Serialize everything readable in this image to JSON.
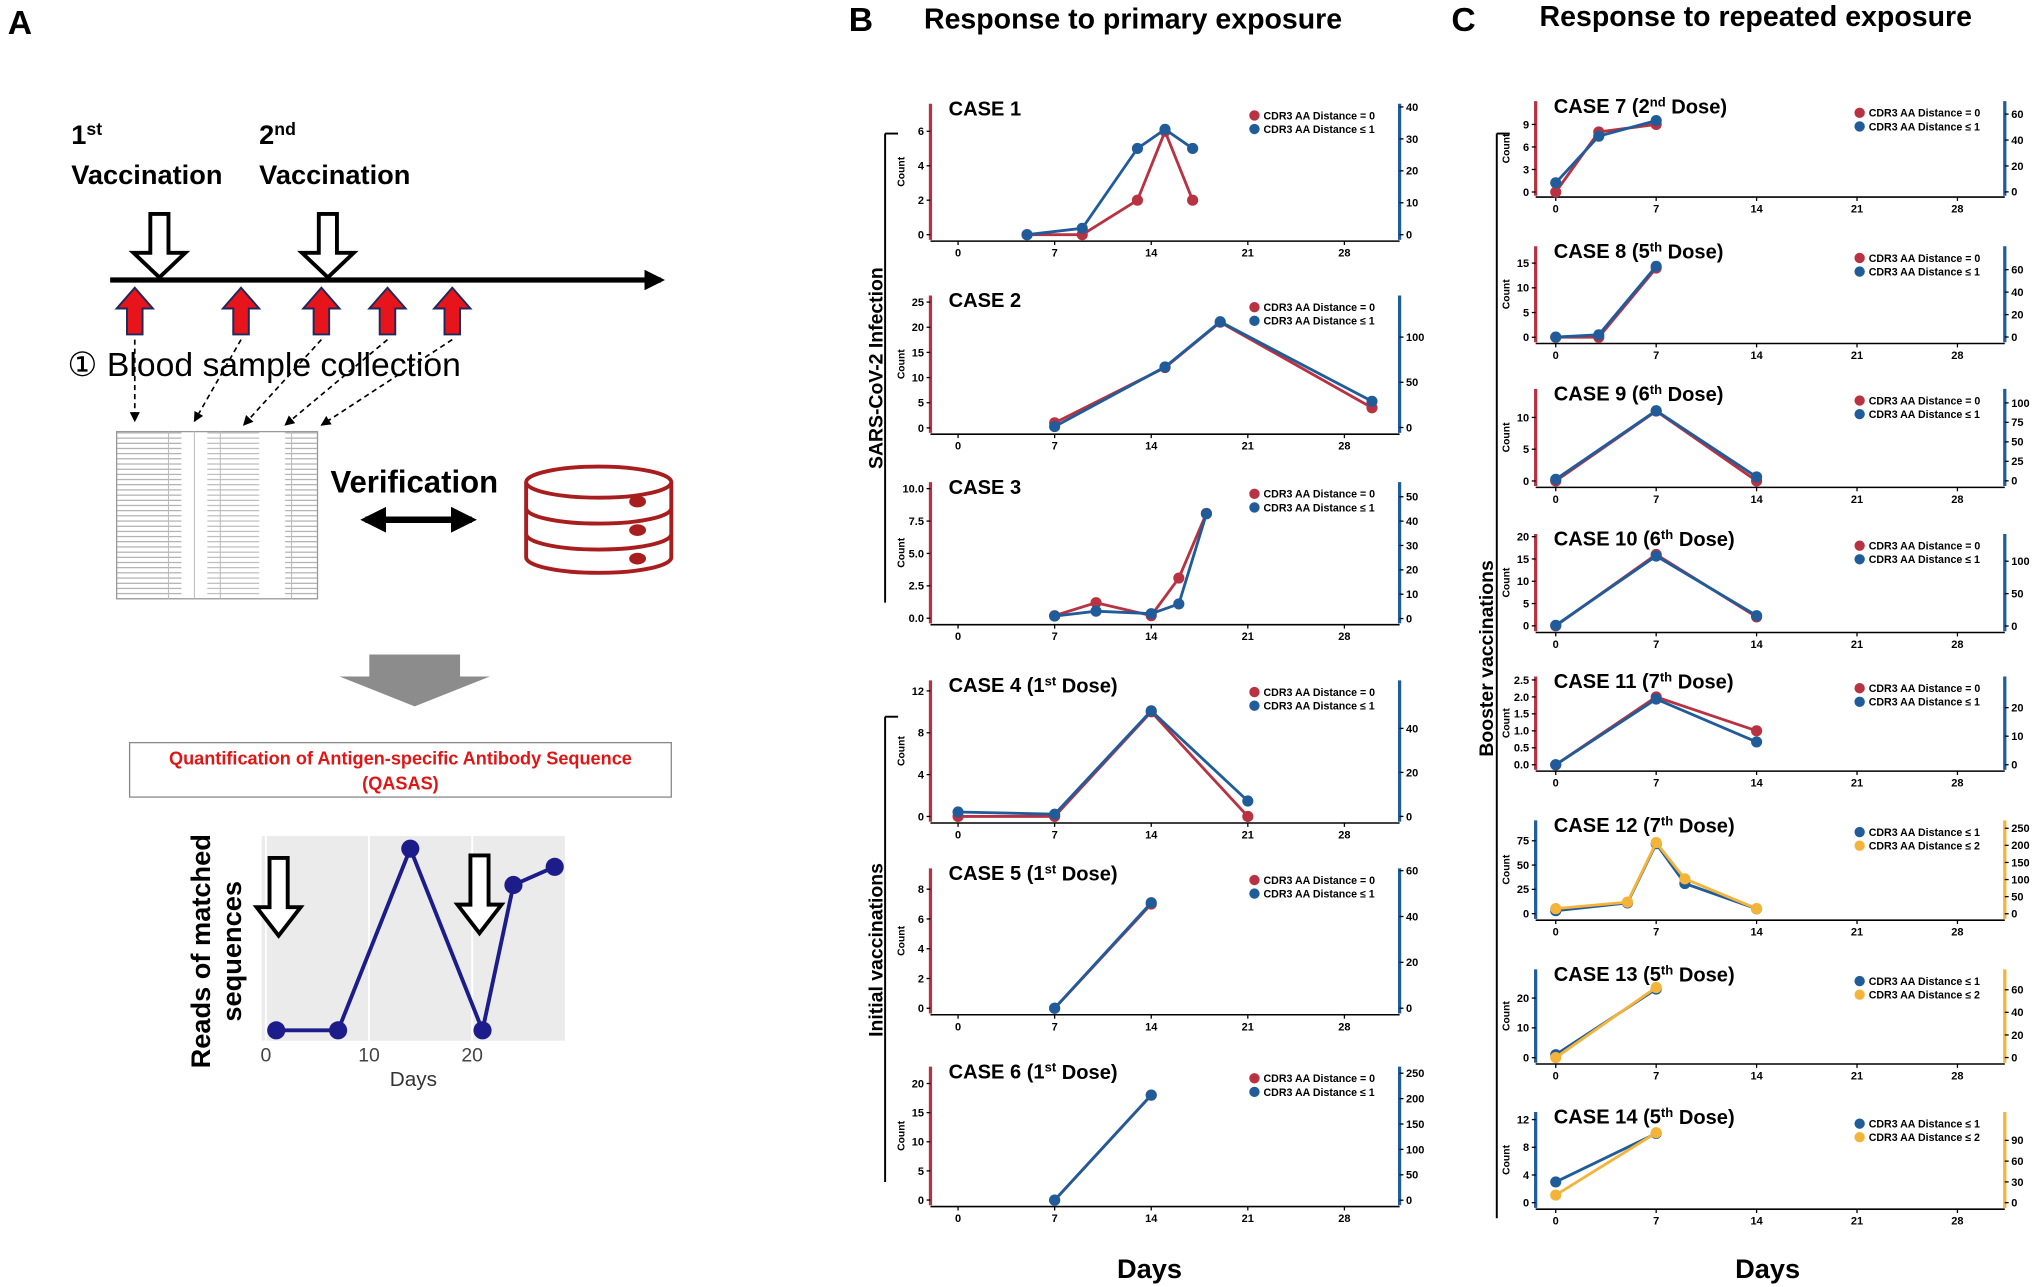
{
  "panel_a": {
    "label": "A",
    "doses": [
      {
        "ordinal": "1st",
        "text": "Vaccination"
      },
      {
        "ordinal": "2nd",
        "text": "Vaccination"
      }
    ],
    "sampling": "① Blood sample collection",
    "verification": "Verification",
    "method": [
      "Quantification of Antigen-specific Antibody Sequence",
      "(QASAS)"
    ]
  },
  "panel_b": {
    "label": "B",
    "title": "Response to primary exposure",
    "groups": [
      "SARS-CoV-2 Infection",
      "Initial vaccinations"
    ],
    "xlabel": "Days"
  },
  "panel_c": {
    "label": "C",
    "title": "Response to repeated exposure",
    "groups": [
      "Booster vaccinations"
    ],
    "xlabel": "Days"
  },
  "chart_data": [
    {
      "type": "line",
      "title": "CASE 1",
      "ylabel": "Count",
      "x": [
        5,
        9,
        13,
        15,
        17
      ],
      "xlim": [
        -2,
        32
      ],
      "xticks": [
        0,
        7,
        14,
        21,
        28
      ],
      "ylim": [
        -0.3,
        7.6
      ],
      "yticks": [
        0,
        2,
        4,
        6
      ],
      "y2lim": [
        -1.6,
        41
      ],
      "y2ticks": [
        0,
        10,
        20,
        30,
        40
      ],
      "series": [
        {
          "name": "CDR3 AA Distance = 0",
          "color": "#b83242",
          "values": [
            0,
            0,
            2,
            6,
            2
          ]
        },
        {
          "name": "CDR3 AA Distance ≤ 1",
          "color": "#1f5c99",
          "values": [
            0,
            2,
            27,
            33,
            27
          ],
          "axis": "y2"
        }
      ]
    },
    {
      "type": "line",
      "title": "CASE 2",
      "ylabel": "Count",
      "x": [
        7,
        15,
        19,
        30
      ],
      "xlim": [
        -2,
        32
      ],
      "xticks": [
        0,
        7,
        14,
        21,
        28
      ],
      "ylim": [
        -1,
        26.3
      ],
      "yticks": [
        0,
        5,
        10,
        15,
        20,
        25
      ],
      "y2lim": [
        -6,
        146
      ],
      "y2ticks": [
        0,
        50,
        100
      ],
      "series": [
        {
          "name": "CDR3 AA Distance = 0",
          "color": "#b83242",
          "values": [
            1,
            12,
            21,
            4
          ]
        },
        {
          "name": "CDR3 AA Distance ≤ 1",
          "color": "#1f5c99",
          "values": [
            1,
            67,
            117,
            29
          ],
          "axis": "y2"
        }
      ]
    },
    {
      "type": "line",
      "title": "CASE 3",
      "ylabel": "Count",
      "x": [
        7,
        10,
        14,
        16,
        18
      ],
      "xlim": [
        -2,
        32
      ],
      "xticks": [
        0,
        7,
        14,
        21,
        28
      ],
      "ylim": [
        -0.4,
        10.5
      ],
      "yticks": [
        {
          "value": 0,
          "label": "0.0"
        },
        2.5,
        {
          "value": 5,
          "label": "5.0"
        },
        7.5,
        {
          "value": 10,
          "label": "10.0"
        }
      ],
      "y2lim": [
        -2,
        56
      ],
      "y2ticks": [
        0,
        10,
        20,
        30,
        40,
        50
      ],
      "series": [
        {
          "name": "CDR3 AA Distance = 0",
          "color": "#b83242",
          "values": [
            0.2,
            1.2,
            0.2,
            3.1,
            8.1
          ]
        },
        {
          "name": "CDR3 AA Distance ≤ 1",
          "color": "#1f5c99",
          "values": [
            1,
            3,
            2,
            6,
            43
          ],
          "axis": "y2"
        }
      ]
    },
    {
      "type": "line",
      "title": "CASE 4 (1st Dose)",
      "ylabel": "Count",
      "x": [
        0,
        7,
        14,
        21
      ],
      "xlim": [
        -2,
        32
      ],
      "xticks": [
        0,
        7,
        14,
        21,
        28
      ],
      "ylim": [
        -0.5,
        13
      ],
      "yticks": [
        0,
        4,
        8,
        12
      ],
      "y2lim": [
        -2.4,
        61.8
      ],
      "y2ticks": [
        0,
        20,
        40
      ],
      "series": [
        {
          "name": "CDR3 AA Distance = 0",
          "color": "#b83242",
          "values": [
            0,
            0,
            10,
            0
          ]
        },
        {
          "name": "CDR3 AA Distance ≤ 1",
          "color": "#1f5c99",
          "values": [
            2,
            1,
            48,
            7
          ],
          "axis": "y2"
        }
      ]
    },
    {
      "type": "line",
      "title": "CASE 5 (1st Dose)",
      "ylabel": "Count",
      "x": [
        7,
        14
      ],
      "xlim": [
        -2,
        32
      ],
      "xticks": [
        0,
        7,
        14,
        21,
        28
      ],
      "ylim": [
        -0.35,
        9.4
      ],
      "yticks": [
        0,
        2,
        4,
        6,
        8
      ],
      "y2lim": [
        -2.3,
        61
      ],
      "y2ticks": [
        0,
        20,
        40,
        60
      ],
      "series": [
        {
          "name": "CDR3 AA Distance = 0",
          "color": "#b83242",
          "values": [
            0,
            7
          ]
        },
        {
          "name": "CDR3 AA Distance ≤ 1",
          "color": "#1f5c99",
          "values": [
            0,
            46
          ],
          "axis": "y2"
        }
      ]
    },
    {
      "type": "line",
      "title": "CASE 6 (1st Dose)",
      "ylabel": "Count",
      "x": [
        7,
        14
      ],
      "xlim": [
        -2,
        32
      ],
      "xticks": [
        0,
        7,
        14,
        21,
        28
      ],
      "ylim": [
        -0.9,
        22.9
      ],
      "yticks": [
        0,
        5,
        10,
        15,
        20
      ],
      "y2lim": [
        -10,
        263
      ],
      "y2ticks": [
        0,
        50,
        100,
        150,
        200,
        250
      ],
      "series": [
        {
          "name": "CDR3 AA Distance = 0",
          "color": "#b83242",
          "values": [
            0,
            18
          ]
        },
        {
          "name": "CDR3 AA Distance ≤ 1",
          "color": "#1f5c99",
          "values": [
            0,
            207
          ],
          "axis": "y2"
        }
      ]
    },
    {
      "type": "line",
      "title": "CASE 7 (2nd Dose)",
      "ylabel": "Count",
      "x": [
        0,
        3,
        7
      ],
      "xlim": [
        -1.4,
        31.3
      ],
      "xticks": [
        0,
        7,
        14,
        21,
        28
      ],
      "ylim": [
        -0.5,
        12.1
      ],
      "yticks": [
        0,
        3,
        6,
        9
      ],
      "y2lim": [
        -3,
        70
      ],
      "y2ticks": [
        0,
        20,
        40,
        60
      ],
      "series": [
        {
          "name": "CDR3 AA Distance = 0",
          "color": "#b83242",
          "values": [
            0,
            8,
            9
          ]
        },
        {
          "name": "CDR3 AA Distance ≤ 1",
          "color": "#1f5c99",
          "values": [
            7,
            43,
            55
          ],
          "axis": "y2"
        }
      ]
    },
    {
      "type": "line",
      "title": "CASE 8 (5th Dose)",
      "ylabel": "Count",
      "x": [
        0,
        3,
        7
      ],
      "xlim": [
        -1.4,
        31.3
      ],
      "xticks": [
        0,
        7,
        14,
        21,
        28
      ],
      "ylim": [
        -1,
        18.4
      ],
      "yticks": [
        0,
        5,
        10,
        15
      ],
      "y2lim": [
        -4.6,
        80.8
      ],
      "y2ticks": [
        0,
        20,
        40,
        60
      ],
      "series": [
        {
          "name": "CDR3 AA Distance = 0",
          "color": "#b83242",
          "values": [
            0,
            0,
            14
          ]
        },
        {
          "name": "CDR3 AA Distance ≤ 1",
          "color": "#1f5c99",
          "values": [
            0,
            2,
            63
          ],
          "axis": "y2"
        }
      ]
    },
    {
      "type": "line",
      "title": "CASE 9 (6th Dose)",
      "ylabel": "Count",
      "x": [
        0,
        7,
        14
      ],
      "xlim": [
        -1.4,
        31.3
      ],
      "xticks": [
        0,
        7,
        14,
        21,
        28
      ],
      "ylim": [
        -0.8,
        14.5
      ],
      "yticks": [
        0,
        5,
        10
      ],
      "y2lim": [
        -6.7,
        118
      ],
      "y2ticks": [
        0,
        25,
        50,
        75,
        100
      ],
      "series": [
        {
          "name": "CDR3 AA Distance = 0",
          "color": "#b83242",
          "values": [
            0,
            11,
            0
          ]
        },
        {
          "name": "CDR3 AA Distance ≤ 1",
          "color": "#1f5c99",
          "values": [
            2,
            90,
            5
          ],
          "axis": "y2"
        }
      ]
    },
    {
      "type": "line",
      "title": "CASE 10 (6th Dose)",
      "ylabel": "Count",
      "x": [
        0,
        7,
        14
      ],
      "xlim": [
        -1.4,
        31.3
      ],
      "xticks": [
        0,
        7,
        14,
        21,
        28
      ],
      "ylim": [
        -1.2,
        20.6
      ],
      "yticks": [
        0,
        5,
        10,
        15,
        20
      ],
      "y2lim": [
        -8,
        142
      ],
      "y2ticks": [
        0,
        50,
        100
      ],
      "series": [
        {
          "name": "CDR3 AA Distance = 0",
          "color": "#b83242",
          "values": [
            0,
            16,
            2
          ]
        },
        {
          "name": "CDR3 AA Distance ≤ 1",
          "color": "#1f5c99",
          "values": [
            1,
            108,
            16
          ],
          "axis": "y2"
        }
      ]
    },
    {
      "type": "line",
      "title": "CASE 11 (7th Dose)",
      "ylabel": "Count",
      "x": [
        0,
        7,
        14
      ],
      "xlim": [
        -1.4,
        31.3
      ],
      "xticks": [
        0,
        7,
        14,
        21,
        28
      ],
      "ylim": [
        -0.15,
        2.6
      ],
      "yticks": [
        {
          "value": 0,
          "label": "0.0"
        },
        0.5,
        {
          "value": 1,
          "label": "1.0"
        },
        1.5,
        {
          "value": 2,
          "label": "2.0"
        },
        2.5
      ],
      "y2lim": [
        -1.8,
        30.9
      ],
      "y2ticks": [
        0,
        10,
        20
      ],
      "series": [
        {
          "name": "CDR3 AA Distance = 0",
          "color": "#b83242",
          "values": [
            0,
            2,
            1
          ]
        },
        {
          "name": "CDR3 AA Distance ≤ 1",
          "color": "#1f5c99",
          "values": [
            0,
            23,
            8
          ],
          "axis": "y2"
        }
      ]
    },
    {
      "type": "line",
      "title": "CASE 12 (7th Dose)",
      "ylabel": "Count",
      "x": [
        0,
        5,
        7,
        9,
        14
      ],
      "xlim": [
        -1.4,
        31.3
      ],
      "xticks": [
        0,
        7,
        14,
        21,
        28
      ],
      "ylim": [
        -5.4,
        96
      ],
      "yticks": [
        0,
        25,
        50,
        75
      ],
      "y2lim": [
        -15,
        273
      ],
      "y2ticks": [
        0,
        50,
        100,
        150,
        200,
        250
      ],
      "series": [
        {
          "name": "CDR3 AA Distance ≤ 1",
          "color": "#1f5c99",
          "values": [
            3,
            11,
            72,
            31,
            5
          ]
        },
        {
          "name": "CDR3 AA Distance ≤ 2",
          "color": "#f4b43a",
          "values": [
            15,
            34,
            208,
            102,
            15
          ],
          "axis": "y2"
        }
      ]
    },
    {
      "type": "line",
      "title": "CASE 13 (5th Dose)",
      "ylabel": "Count",
      "x": [
        0,
        7
      ],
      "xlim": [
        -1.4,
        31.3
      ],
      "xticks": [
        0,
        7,
        14,
        21,
        28
      ],
      "ylim": [
        -1.7,
        29.6
      ],
      "yticks": [
        0,
        10,
        20
      ],
      "y2lim": [
        -4.6,
        78
      ],
      "y2ticks": [
        0,
        20,
        40,
        60
      ],
      "series": [
        {
          "name": "CDR3 AA Distance ≤ 1",
          "color": "#1f5c99",
          "values": [
            1,
            23
          ]
        },
        {
          "name": "CDR3 AA Distance ≤ 2",
          "color": "#f4b43a",
          "values": [
            0,
            62
          ],
          "axis": "y2"
        }
      ]
    },
    {
      "type": "line",
      "title": "CASE 14 (5th Dose)",
      "ylabel": "Count",
      "x": [
        0,
        7
      ],
      "xlim": [
        -1.4,
        31.3
      ],
      "xticks": [
        0,
        7,
        14,
        21,
        28
      ],
      "ylim": [
        -0.75,
        13.1
      ],
      "yticks": [
        0,
        4,
        8,
        12
      ],
      "y2lim": [
        -7.5,
        131
      ],
      "y2ticks": [
        0,
        30,
        60,
        90
      ],
      "series": [
        {
          "name": "CDR3 AA Distance ≤ 1",
          "color": "#1f5c99",
          "values": [
            3,
            10
          ]
        },
        {
          "name": "CDR3 AA Distance ≤ 2",
          "color": "#f4b43a",
          "values": [
            11,
            101
          ],
          "axis": "y2"
        }
      ]
    },
    {
      "type": "line",
      "xlabel": "Days",
      "ylabel": [
        "Reads of matched",
        "sequences"
      ],
      "x": [
        1,
        7,
        14,
        21,
        24,
        28
      ],
      "xlim": [
        -0.4,
        29
      ],
      "xticks": [
        0,
        10,
        20
      ],
      "ylim": [
        -0.57,
        10.7
      ],
      "grid": true,
      "series": [
        {
          "color": "#1c1c8a",
          "values": [
            0,
            0,
            10,
            0,
            8,
            9
          ]
        }
      ]
    }
  ]
}
